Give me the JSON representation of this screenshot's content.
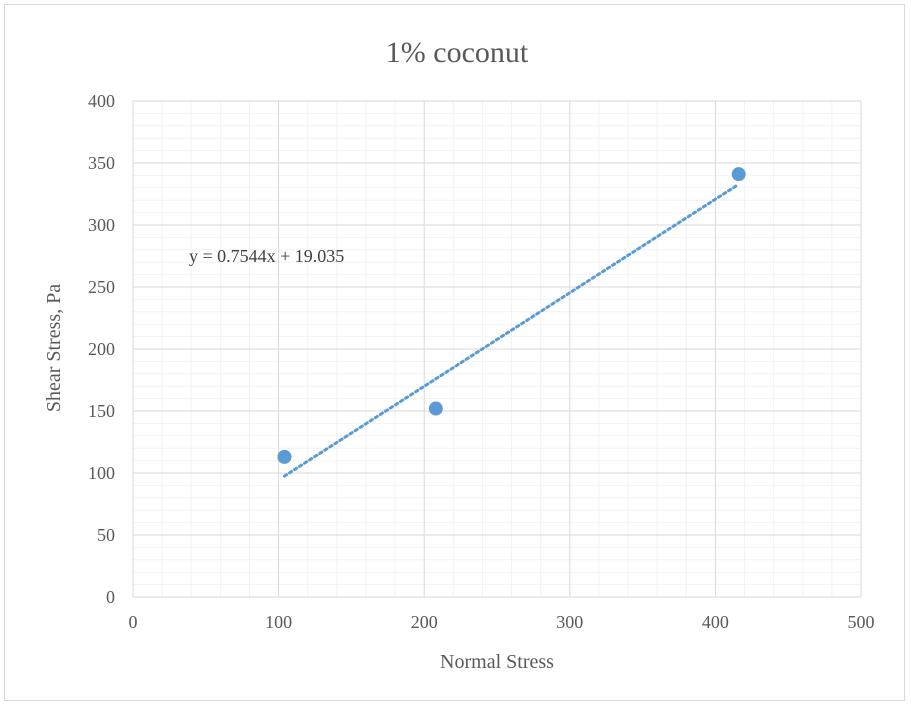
{
  "chart_data": {
    "type": "scatter",
    "title": "1% coconut",
    "xlabel": "Normal Stress",
    "ylabel": "Shear Stress, Pa",
    "xlim": [
      0,
      500
    ],
    "ylim": [
      0,
      400
    ],
    "x_major_step": 100,
    "y_major_step": 50,
    "x_minor_step": 20,
    "y_minor_step": 10,
    "grid": true,
    "legend": "none",
    "series": [
      {
        "x": [
          104,
          208,
          416
        ],
        "y": [
          113,
          152,
          341
        ],
        "color": "#5b9bd5"
      }
    ],
    "trendline": {
      "type": "linear",
      "style": "dotted",
      "slope": 0.7544,
      "intercept": 19.035,
      "x_range": [
        104,
        416
      ],
      "color": "#5b9bd5",
      "equation": "y = 0.7544x + 19.035"
    }
  }
}
